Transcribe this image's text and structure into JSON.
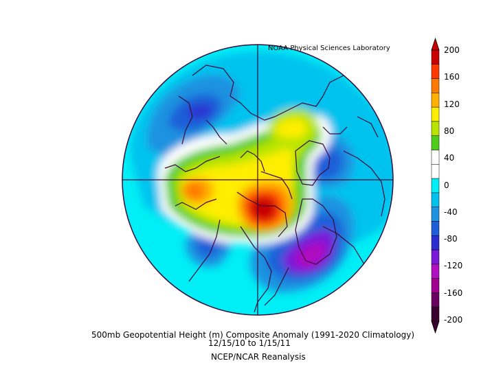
{
  "credit": "NOAA Physical Sciences Laboratory",
  "title": "500mb Geopotential Height (m) Composite Anomaly (1991-2020 Climatology)",
  "dates": "12/15/10   to 1/15/11",
  "source": "NCEP/NCAR Reanalysis",
  "colorbar": {
    "ticks": [
      "200",
      "160",
      "120",
      "80",
      "40",
      "0",
      "-40",
      "-80",
      "-120",
      "-160",
      "-200"
    ],
    "colors": [
      "#c80000",
      "#ff3a00",
      "#ff7a00",
      "#ffb000",
      "#ffee00",
      "#b8e400",
      "#4fcc1a",
      "#ffffff",
      "#ffffff",
      "#00eef5",
      "#00c2ee",
      "#1f92e0",
      "#1e5ed8",
      "#2a2ed0",
      "#7a18d8",
      "#b010c0",
      "#a00090",
      "#6a0060",
      "#3a0030"
    ]
  },
  "map": {
    "projection": "north-polar-stereographic",
    "coastline_color": "#3a0a3a",
    "background_color": "#00eef5"
  }
}
